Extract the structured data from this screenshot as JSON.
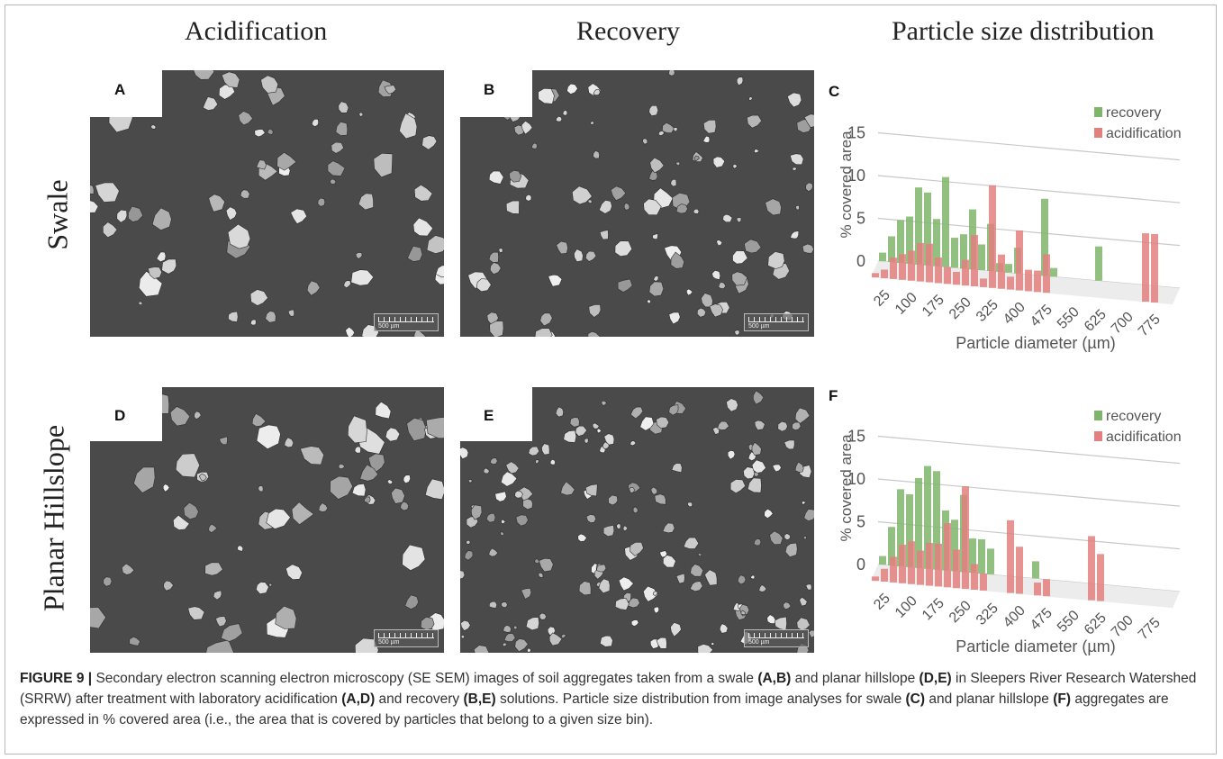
{
  "column_headers": [
    "Acidification",
    "Recovery",
    "Particle size distribution"
  ],
  "row_headers": [
    "Swale",
    "Planar Hillslope"
  ],
  "panel_labels": {
    "A": "A",
    "B": "B",
    "C": "C",
    "D": "D",
    "E": "E",
    "F": "F"
  },
  "scale_bar_label": "500 µm",
  "caption": {
    "figure_label": "FIGURE 9 |",
    "parts": [
      {
        "t": " Secondary electron scanning electron microscopy (SE SEM) images of soil aggregates taken from a swale ",
        "b": false
      },
      {
        "t": "(A,B)",
        "b": true
      },
      {
        "t": " and planar hillslope ",
        "b": false
      },
      {
        "t": "(D,E)",
        "b": true
      },
      {
        "t": " in Sleepers River Research Watershed (SRRW) after treatment with laboratory acidification ",
        "b": false
      },
      {
        "t": "(A,D)",
        "b": true
      },
      {
        "t": " and recovery ",
        "b": false
      },
      {
        "t": "(B,E)",
        "b": true
      },
      {
        "t": " solutions. Particle size distribution from image analyses for swale ",
        "b": false
      },
      {
        "t": "(C)",
        "b": true
      },
      {
        "t": " and planar hillslope ",
        "b": false
      },
      {
        "t": "(F)",
        "b": true
      },
      {
        "t": " aggregates are expressed in % covered area (i.e., the area that is covered by particles that belong to a given size bin).",
        "b": false
      }
    ]
  },
  "colors": {
    "recovery": "#7fb56a",
    "acidification": "#e2807f",
    "sem_bg": "#4a4a4a"
  },
  "chart_data": [
    {
      "type": "bar",
      "panel": "C",
      "ylabel": "% covered area",
      "xlabel": "Particle diameter (µm)",
      "ylim": [
        0,
        15
      ],
      "yticks": [
        0,
        5,
        10,
        15
      ],
      "xticks": [
        "25",
        "100",
        "175",
        "250",
        "325",
        "400",
        "475",
        "550",
        "625",
        "700",
        "775"
      ],
      "bins": [
        25,
        50,
        75,
        100,
        125,
        150,
        175,
        200,
        225,
        250,
        275,
        300,
        325,
        350,
        375,
        400,
        425,
        450,
        475,
        500,
        525,
        550,
        575,
        600,
        625,
        650,
        675,
        700,
        725,
        750,
        775,
        800
      ],
      "legend_position": "top-right",
      "series": [
        {
          "name": "recovery",
          "values": [
            1,
            3,
            5,
            5.5,
            9,
            8.5,
            5.5,
            10.5,
            3.5,
            4,
            7,
            3,
            5.5,
            1,
            1,
            3,
            0,
            0,
            9,
            1,
            0,
            0,
            0,
            0,
            4,
            0,
            0,
            0,
            0,
            0,
            0,
            0
          ]
        },
        {
          "name": "acidification",
          "values": [
            0.5,
            1,
            2.5,
            3,
            3.5,
            4.5,
            4.5,
            3,
            2,
            1.5,
            3,
            6,
            1,
            12,
            4,
            1.5,
            7,
            2.5,
            2.5,
            4.5,
            0,
            0,
            0,
            0,
            0,
            0,
            0,
            0,
            0,
            0,
            8,
            8
          ]
        }
      ]
    },
    {
      "type": "bar",
      "panel": "F",
      "ylabel": "% covered area",
      "xlabel": "Particle diameter (µm)",
      "ylim": [
        0,
        15
      ],
      "yticks": [
        0,
        5,
        10,
        15
      ],
      "xticks": [
        "25",
        "100",
        "175",
        "250",
        "325",
        "400",
        "475",
        "550",
        "625",
        "700",
        "775"
      ],
      "bins": [
        25,
        50,
        75,
        100,
        125,
        150,
        175,
        200,
        225,
        250,
        275,
        300,
        325,
        350,
        375,
        400,
        425,
        450,
        475,
        500,
        525,
        550,
        575,
        600,
        625,
        650,
        675,
        700,
        725,
        750,
        775,
        800
      ],
      "legend_position": "top-right",
      "series": [
        {
          "name": "recovery",
          "values": [
            1,
            4.5,
            9,
            8.5,
            10.5,
            12,
            11.5,
            7,
            6,
            9,
            4,
            4,
            3,
            0,
            0,
            0,
            0,
            2,
            0,
            0,
            0,
            0,
            0,
            0,
            0,
            0,
            0,
            0,
            0,
            0,
            0,
            0
          ]
        },
        {
          "name": "acidification",
          "values": [
            0.5,
            1.5,
            3,
            4.5,
            5,
            4,
            5,
            5,
            7.5,
            4.5,
            12,
            3,
            2,
            0,
            0,
            8.5,
            5.5,
            0,
            1.5,
            2,
            0,
            0,
            0,
            0,
            7.5,
            5.5,
            0,
            0,
            0,
            0,
            0,
            0
          ]
        }
      ]
    }
  ]
}
